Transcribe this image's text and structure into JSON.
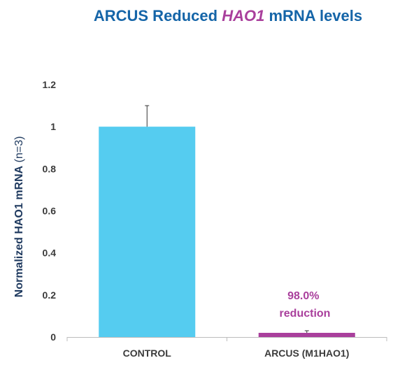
{
  "chart_data": {
    "type": "bar",
    "title": {
      "part1": "ARCUS Reduced ",
      "part2": "HAO1",
      "part3": " mRNA levels"
    },
    "ylabel": {
      "main": "Normalized HAO1 mRNA",
      "suffix": " (n=3)"
    },
    "categories": [
      "CONTROL",
      "ARCUS (M1HAO1)"
    ],
    "values": [
      1.0,
      0.02
    ],
    "errors": [
      0.1,
      0.01
    ],
    "ylim": [
      0,
      1.2
    ],
    "yticks": [
      0,
      0.2,
      0.4,
      0.6,
      0.8,
      1,
      1.2
    ],
    "ytick_labels": [
      "0",
      "0.2",
      "0.4",
      "0.6",
      "0.8",
      "1",
      "1.2"
    ],
    "bar_colors": [
      "#55ccf0",
      "#a93f9c"
    ],
    "annotation": {
      "line1": "98.0%",
      "line2": "reduction"
    },
    "grid": false,
    "legend": "none"
  },
  "colors": {
    "title_blue": "#1565a8",
    "title_purple": "#a93f9c",
    "axis_text": "#3b3b3b",
    "axis_title": "#1f3a5f",
    "annotation": "#a93f9c",
    "axis_line": "#bdbdbd",
    "error_bar": "#333333"
  }
}
